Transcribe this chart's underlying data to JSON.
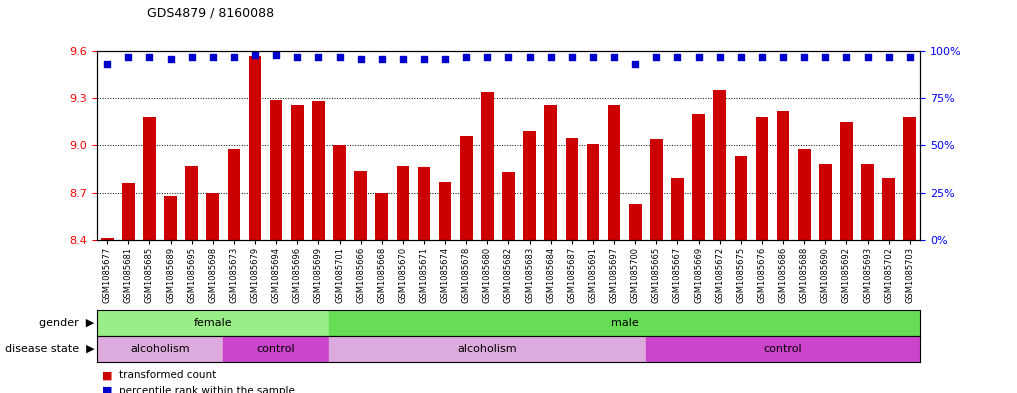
{
  "title": "GDS4879 / 8160088",
  "samples": [
    "GSM1085677",
    "GSM1085681",
    "GSM1085685",
    "GSM1085689",
    "GSM1085695",
    "GSM1085698",
    "GSM1085673",
    "GSM1085679",
    "GSM1085694",
    "GSM1085696",
    "GSM1085699",
    "GSM1085701",
    "GSM1085666",
    "GSM1085668",
    "GSM1085670",
    "GSM1085671",
    "GSM1085674",
    "GSM1085678",
    "GSM1085680",
    "GSM1085682",
    "GSM1085683",
    "GSM1085684",
    "GSM1085687",
    "GSM1085691",
    "GSM1085697",
    "GSM1085700",
    "GSM1085665",
    "GSM1085667",
    "GSM1085669",
    "GSM1085672",
    "GSM1085675",
    "GSM1085676",
    "GSM1085686",
    "GSM1085688",
    "GSM1085690",
    "GSM1085692",
    "GSM1085693",
    "GSM1085702",
    "GSM1085703"
  ],
  "bar_values": [
    8.41,
    8.76,
    9.18,
    8.68,
    8.87,
    8.7,
    8.98,
    9.57,
    9.29,
    9.26,
    9.28,
    9.0,
    8.84,
    8.7,
    8.87,
    8.86,
    8.77,
    9.06,
    9.34,
    8.83,
    9.09,
    9.26,
    9.05,
    9.01,
    9.26,
    8.63,
    9.04,
    8.79,
    9.2,
    9.35,
    8.93,
    9.18,
    9.22,
    8.98,
    8.88,
    9.15,
    8.88,
    8.79,
    9.18
  ],
  "percentile_values": [
    93,
    97,
    97,
    96,
    97,
    97,
    97,
    98,
    98,
    97,
    97,
    97,
    96,
    96,
    96,
    96,
    96,
    97,
    97,
    97,
    97,
    97,
    97,
    97,
    97,
    93,
    97,
    97,
    97,
    97,
    97,
    97,
    97,
    97,
    97,
    97,
    97,
    97,
    97
  ],
  "ylim_left": [
    8.4,
    9.6
  ],
  "ylim_right": [
    0,
    100
  ],
  "yticks_left": [
    8.4,
    8.7,
    9.0,
    9.3,
    9.6
  ],
  "yticks_right": [
    0,
    25,
    50,
    75,
    100
  ],
  "bar_color": "#cc0000",
  "dot_color": "#0000cc",
  "background_color": "#ffffff",
  "gender_data": [
    {
      "label": "female",
      "start": 0,
      "end": 11,
      "color": "#99ee88"
    },
    {
      "label": "male",
      "start": 11,
      "end": 39,
      "color": "#66dd55"
    }
  ],
  "disease_data": [
    {
      "label": "alcoholism",
      "start": 0,
      "end": 6,
      "color": "#ddaadd"
    },
    {
      "label": "control",
      "start": 6,
      "end": 11,
      "color": "#cc44cc"
    },
    {
      "label": "alcoholism",
      "start": 11,
      "end": 26,
      "color": "#ddaadd"
    },
    {
      "label": "control",
      "start": 26,
      "end": 39,
      "color": "#cc44cc"
    }
  ],
  "legend_bar_label": "transformed count",
  "legend_dot_label": "percentile rank within the sample",
  "bar_width": 0.6
}
